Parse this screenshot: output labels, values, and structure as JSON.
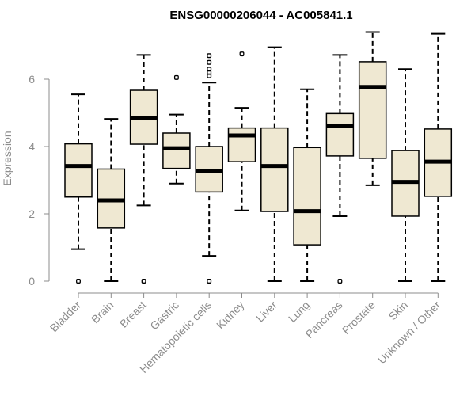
{
  "chart_data": {
    "type": "boxplot",
    "title": "ENSG00000206044 - AC005841.1",
    "xlabel": "",
    "ylabel": "Expression",
    "ylim": [
      0,
      7.3
    ],
    "yticks": [
      0,
      2,
      4,
      6
    ],
    "box_color": "#efe8d2",
    "categories": [
      "Bladder",
      "Brain",
      "Breast",
      "Gastric",
      "Hematopoietic cells",
      "Kidney",
      "Liver",
      "Lung",
      "Pancreas",
      "Prostate",
      "Skin",
      "Unknown / Other"
    ],
    "boxes": [
      {
        "name": "Bladder",
        "whisker_low": 0.95,
        "q1": 2.5,
        "median": 3.42,
        "q3": 4.08,
        "whisker_high": 5.55,
        "outliers": [
          0.0
        ]
      },
      {
        "name": "Brain",
        "whisker_low": 0.0,
        "q1": 1.58,
        "median": 2.4,
        "q3": 3.33,
        "whisker_high": 4.82,
        "outliers": []
      },
      {
        "name": "Breast",
        "whisker_low": 2.25,
        "q1": 4.07,
        "median": 4.85,
        "q3": 5.67,
        "whisker_high": 6.72,
        "outliers": [
          0.0
        ]
      },
      {
        "name": "Gastric",
        "whisker_low": 2.9,
        "q1": 3.35,
        "median": 3.95,
        "q3": 4.4,
        "whisker_high": 4.95,
        "outliers": [
          6.05
        ]
      },
      {
        "name": "Hematopoietic cells",
        "whisker_low": 0.75,
        "q1": 2.65,
        "median": 3.27,
        "q3": 4.0,
        "whisker_high": 5.9,
        "outliers": [
          0.0,
          6.1,
          6.2,
          6.3,
          6.5,
          6.7
        ]
      },
      {
        "name": "Kidney",
        "whisker_low": 2.1,
        "q1": 3.55,
        "median": 4.33,
        "q3": 4.55,
        "whisker_high": 5.15,
        "outliers": [
          6.75
        ]
      },
      {
        "name": "Liver",
        "whisker_low": 0.0,
        "q1": 2.07,
        "median": 3.42,
        "q3": 4.55,
        "whisker_high": 6.95,
        "outliers": []
      },
      {
        "name": "Lung",
        "whisker_low": 0.0,
        "q1": 1.08,
        "median": 2.08,
        "q3": 3.97,
        "whisker_high": 5.7,
        "outliers": []
      },
      {
        "name": "Pancreas",
        "whisker_low": 1.93,
        "q1": 3.72,
        "median": 4.62,
        "q3": 4.98,
        "whisker_high": 6.72,
        "outliers": [
          0.0
        ]
      },
      {
        "name": "Prostate",
        "whisker_low": 2.85,
        "q1": 3.65,
        "median": 5.77,
        "q3": 6.52,
        "whisker_high": 7.4,
        "outliers": []
      },
      {
        "name": "Skin",
        "whisker_low": 0.0,
        "q1": 1.93,
        "median": 2.95,
        "q3": 3.88,
        "whisker_high": 6.3,
        "outliers": []
      },
      {
        "name": "Unknown / Other",
        "whisker_low": 0.0,
        "q1": 2.52,
        "median": 3.55,
        "q3": 4.52,
        "whisker_high": 7.35,
        "outliers": []
      }
    ]
  }
}
